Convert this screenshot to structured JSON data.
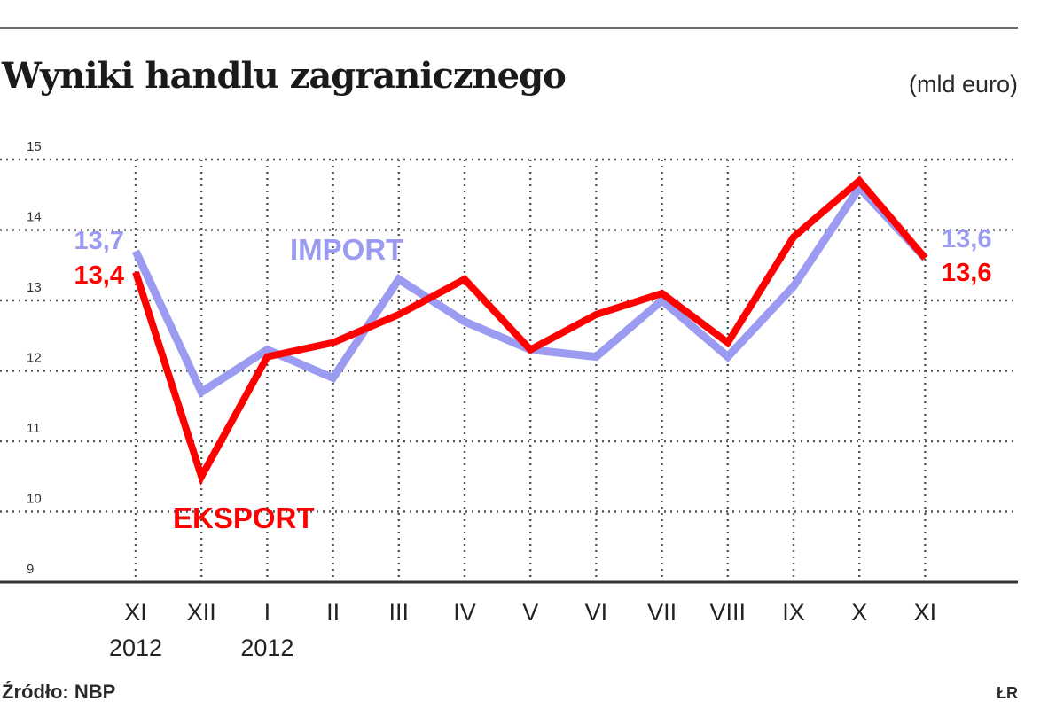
{
  "header": {
    "title": "Wyniki handlu zagranicznego",
    "unit": "(mld euro)"
  },
  "footer": {
    "source": "Źródło: NBP",
    "credit": "ŁR"
  },
  "colors": {
    "import": "#9b9bf2",
    "eksport": "#ff0000",
    "grid": "#555555",
    "axis": "#333333"
  },
  "chart_data": {
    "type": "line",
    "title": "Wyniki handlu zagranicznego",
    "ylabel": "(mld euro)",
    "ylim": [
      9,
      15
    ],
    "yticks": [
      9,
      10,
      11,
      12,
      13,
      14,
      15
    ],
    "grid": true,
    "categories": [
      "XI",
      "XII",
      "I",
      "II",
      "III",
      "IV",
      "V",
      "VI",
      "VII",
      "VIII",
      "IX",
      "X",
      "XI"
    ],
    "year_labels": [
      "2012",
      "",
      "2012",
      "",
      "",
      "",
      "",
      "",
      "",
      "",
      "",
      "",
      ""
    ],
    "series": [
      {
        "name": "IMPORT",
        "color": "#9b9bf2",
        "values": [
          13.7,
          11.7,
          12.3,
          11.9,
          13.3,
          12.7,
          12.3,
          12.2,
          13.0,
          12.2,
          13.2,
          14.6,
          13.6
        ],
        "start_label": "13,7",
        "end_label": "13,6"
      },
      {
        "name": "EKSPORT",
        "color": "#ff0000",
        "values": [
          13.4,
          10.5,
          12.2,
          12.4,
          12.8,
          13.3,
          12.3,
          12.8,
          13.1,
          12.4,
          13.9,
          14.7,
          13.6
        ],
        "start_label": "13,4",
        "end_label": "13,6"
      }
    ]
  }
}
